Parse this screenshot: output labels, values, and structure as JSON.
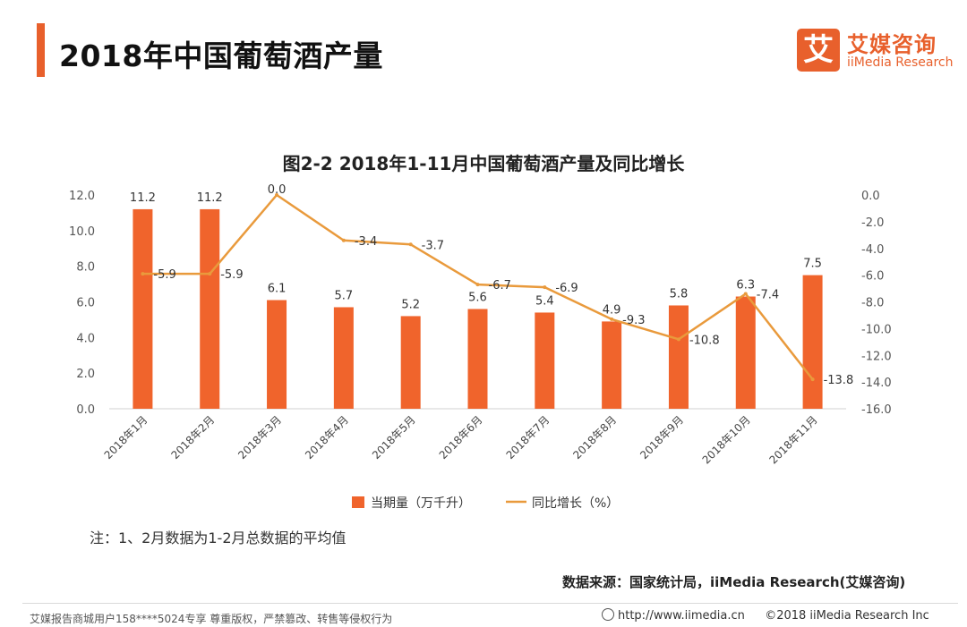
{
  "header": {
    "title": "2018年中国葡萄酒产量",
    "logo_mark": "艾",
    "logo_cn": "艾媒咨询",
    "logo_en": "iiMedia Research"
  },
  "colors": {
    "accent": "#e8602c",
    "bar": "#f0642c",
    "line": "#e99a3c"
  },
  "chart_data": {
    "type": "bar+line",
    "title": "图2-2 2018年1-11月中国葡萄酒产量及同比增长",
    "categories": [
      "2018年1月",
      "2018年2月",
      "2018年3月",
      "2018年4月",
      "2018年5月",
      "2018年6月",
      "2018年7月",
      "2018年8月",
      "2018年9月",
      "2018年10月",
      "2018年11月"
    ],
    "series": [
      {
        "name": "当期量（万千升）",
        "type": "bar",
        "axis": "left",
        "values": [
          11.2,
          11.2,
          6.1,
          5.7,
          5.2,
          5.6,
          5.4,
          4.9,
          5.8,
          6.3,
          7.5
        ],
        "labels": [
          "11.2",
          "11.2",
          "6.1",
          "5.7",
          "5.2",
          "5.6",
          "5.4",
          "4.9",
          "5.8",
          "6.3",
          "7.5"
        ]
      },
      {
        "name": "同比增长（%）",
        "type": "line",
        "axis": "right",
        "values": [
          -5.9,
          -5.9,
          0.0,
          -3.4,
          -3.7,
          -6.7,
          -6.9,
          -9.3,
          -10.8,
          -7.4,
          -13.8
        ],
        "labels": [
          "-5.9",
          "-5.9",
          "0.0",
          "-3.4",
          "-3.7",
          "-6.7",
          "-6.9",
          "-9.3",
          "-10.8",
          "-7.4",
          "-13.8"
        ]
      }
    ],
    "left_axis": {
      "ylim": [
        0,
        12
      ],
      "ticks": [
        "0.0",
        "2.0",
        "4.0",
        "6.0",
        "8.0",
        "10.0",
        "12.0"
      ]
    },
    "right_axis": {
      "ylim": [
        -16,
        0
      ],
      "ticks": [
        "0.0",
        "-2.0",
        "-4.0",
        "-6.0",
        "-8.0",
        "-10.0",
        "-12.0",
        "-14.0",
        "-16.0"
      ]
    },
    "legend": [
      "当期量（万千升）",
      "同比增长（%）"
    ]
  },
  "note": "注：1、2月数据为1-2月总数据的平均值",
  "source": "数据来源：国家统计局，iiMedia Research(艾媒咨询)",
  "footer": {
    "left": "艾媒报告商城用户158****5024专享 尊重版权，严禁篡改、转售等侵权行为",
    "url": "http://www.iimedia.cn",
    "copyright": "©2018  iiMedia Research  Inc"
  }
}
